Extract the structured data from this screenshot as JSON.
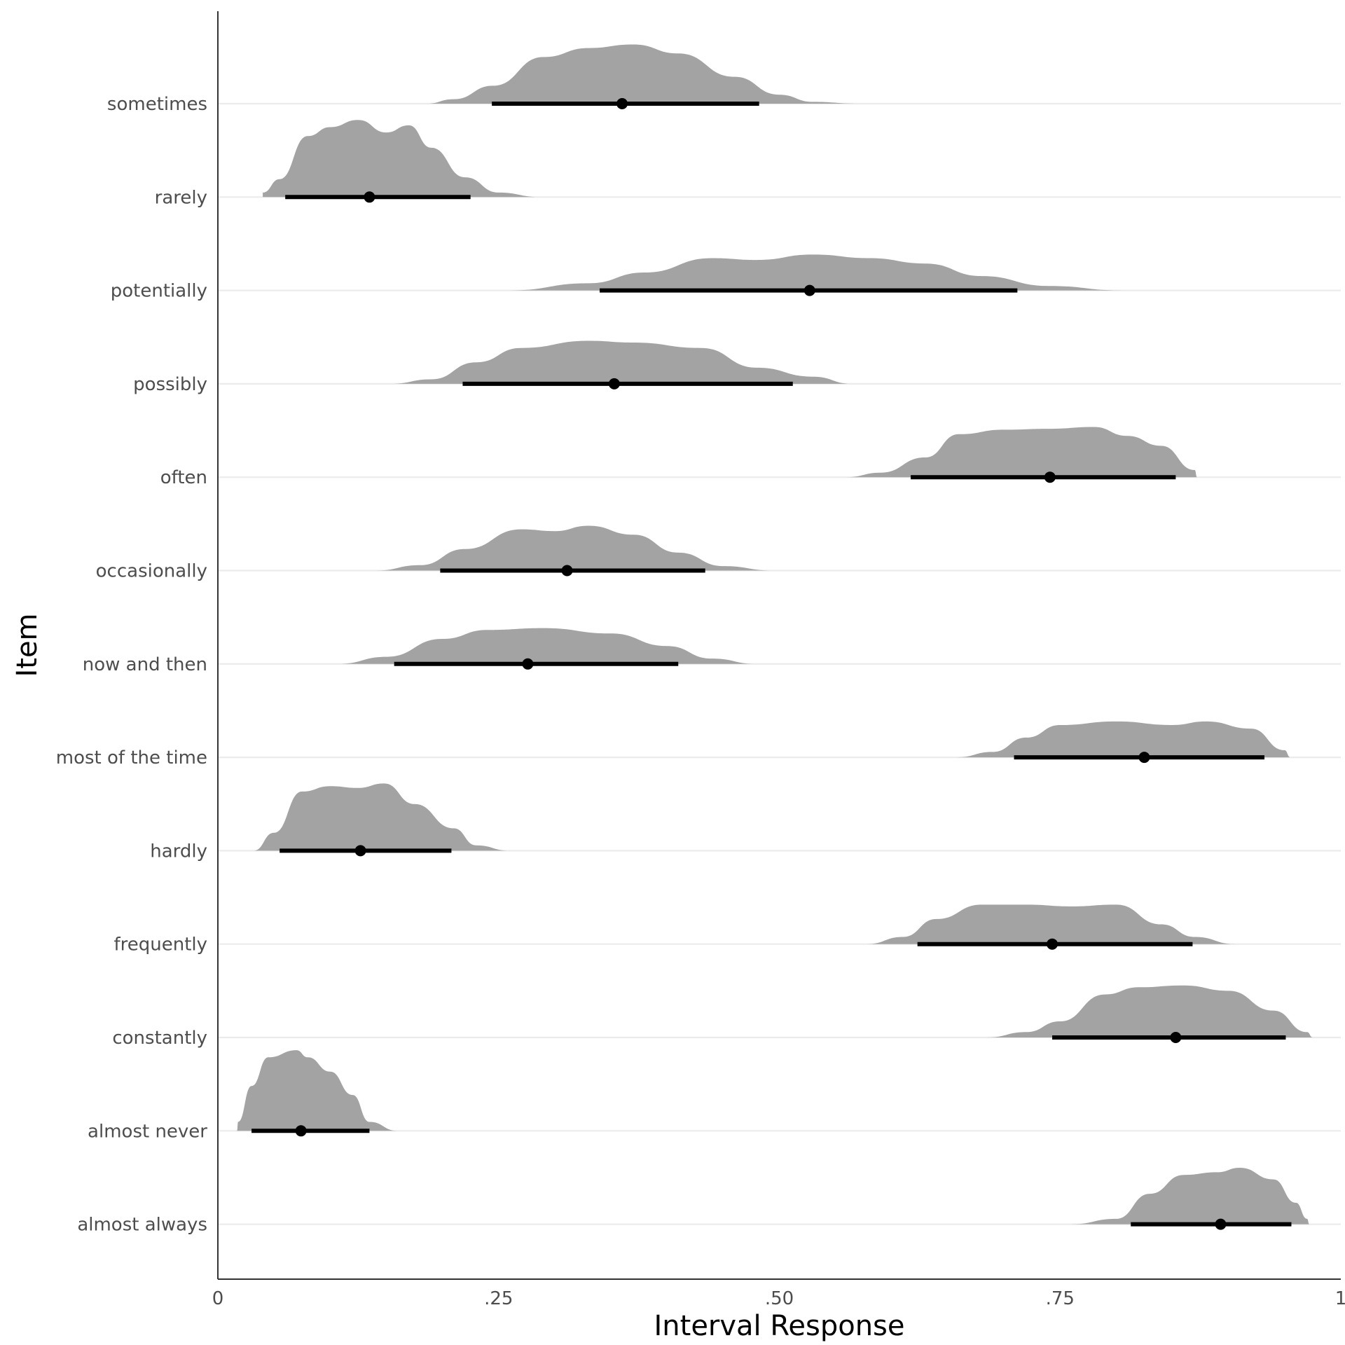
{
  "chart_data": {
    "type": "halfeye",
    "xlabel": "Interval Response",
    "ylabel": "Item",
    "xlim": [
      0,
      1
    ],
    "x_ticks": [
      {
        "value": 0,
        "label": "0"
      },
      {
        "value": 0.25,
        "label": ".25"
      },
      {
        "value": 0.5,
        "label": ".50"
      },
      {
        "value": 0.75,
        "label": ".75"
      },
      {
        "value": 1,
        "label": "1"
      }
    ],
    "grid": {
      "major_y": true,
      "major_x": false
    },
    "colors": {
      "density_fill": "#a3a3a3",
      "interval": "#000000",
      "point": "#000000",
      "gridline": "#ebebeb",
      "axis": "#333333"
    },
    "items": [
      {
        "label": "sometimes",
        "point": 0.36,
        "interval": [
          0.244,
          0.482
        ],
        "density": [
          [
            0.186,
            0.0
          ],
          [
            0.21,
            0.05
          ],
          [
            0.245,
            0.2
          ],
          [
            0.29,
            0.52
          ],
          [
            0.33,
            0.62
          ],
          [
            0.37,
            0.66
          ],
          [
            0.41,
            0.56
          ],
          [
            0.46,
            0.3
          ],
          [
            0.5,
            0.1
          ],
          [
            0.53,
            0.02
          ],
          [
            0.57,
            0.0
          ]
        ]
      },
      {
        "label": "rarely",
        "point": 0.135,
        "interval": [
          0.06,
          0.225
        ],
        "density": [
          [
            0.04,
            0.05
          ],
          [
            0.055,
            0.2
          ],
          [
            0.08,
            0.68
          ],
          [
            0.1,
            0.78
          ],
          [
            0.125,
            0.86
          ],
          [
            0.15,
            0.72
          ],
          [
            0.17,
            0.8
          ],
          [
            0.19,
            0.55
          ],
          [
            0.22,
            0.22
          ],
          [
            0.25,
            0.05
          ],
          [
            0.287,
            0.0
          ]
        ]
      },
      {
        "label": "potentially",
        "point": 0.527,
        "interval": [
          0.34,
          0.712
        ],
        "density": [
          [
            0.26,
            0.0
          ],
          [
            0.33,
            0.08
          ],
          [
            0.38,
            0.2
          ],
          [
            0.44,
            0.36
          ],
          [
            0.48,
            0.34
          ],
          [
            0.53,
            0.4
          ],
          [
            0.58,
            0.36
          ],
          [
            0.63,
            0.3
          ],
          [
            0.68,
            0.16
          ],
          [
            0.74,
            0.05
          ],
          [
            0.805,
            0.0
          ]
        ]
      },
      {
        "label": "possibly",
        "point": 0.353,
        "interval": [
          0.218,
          0.512
        ],
        "density": [
          [
            0.154,
            0.0
          ],
          [
            0.19,
            0.05
          ],
          [
            0.23,
            0.24
          ],
          [
            0.27,
            0.4
          ],
          [
            0.33,
            0.48
          ],
          [
            0.37,
            0.46
          ],
          [
            0.43,
            0.4
          ],
          [
            0.48,
            0.18
          ],
          [
            0.53,
            0.08
          ],
          [
            0.565,
            0.0
          ]
        ]
      },
      {
        "label": "often",
        "point": 0.741,
        "interval": [
          0.617,
          0.853
        ],
        "density": [
          [
            0.56,
            0.0
          ],
          [
            0.59,
            0.05
          ],
          [
            0.63,
            0.22
          ],
          [
            0.66,
            0.48
          ],
          [
            0.7,
            0.53
          ],
          [
            0.74,
            0.54
          ],
          [
            0.78,
            0.56
          ],
          [
            0.81,
            0.46
          ],
          [
            0.84,
            0.35
          ],
          [
            0.87,
            0.08
          ],
          [
            0.872,
            0.0
          ]
        ]
      },
      {
        "label": "occasionally",
        "point": 0.311,
        "interval": [
          0.198,
          0.434
        ],
        "density": [
          [
            0.141,
            0.0
          ],
          [
            0.18,
            0.06
          ],
          [
            0.22,
            0.24
          ],
          [
            0.27,
            0.46
          ],
          [
            0.3,
            0.44
          ],
          [
            0.33,
            0.5
          ],
          [
            0.37,
            0.4
          ],
          [
            0.41,
            0.2
          ],
          [
            0.45,
            0.05
          ],
          [
            0.495,
            0.0
          ]
        ]
      },
      {
        "label": "now and then",
        "point": 0.276,
        "interval": [
          0.157,
          0.41
        ],
        "density": [
          [
            0.107,
            0.0
          ],
          [
            0.15,
            0.08
          ],
          [
            0.2,
            0.28
          ],
          [
            0.24,
            0.38
          ],
          [
            0.29,
            0.4
          ],
          [
            0.35,
            0.34
          ],
          [
            0.4,
            0.2
          ],
          [
            0.44,
            0.06
          ],
          [
            0.48,
            0.0
          ]
        ]
      },
      {
        "label": "most of the time",
        "point": 0.825,
        "interval": [
          0.709,
          0.932
        ],
        "density": [
          [
            0.658,
            0.0
          ],
          [
            0.69,
            0.06
          ],
          [
            0.72,
            0.22
          ],
          [
            0.75,
            0.36
          ],
          [
            0.8,
            0.4
          ],
          [
            0.85,
            0.36
          ],
          [
            0.88,
            0.4
          ],
          [
            0.92,
            0.32
          ],
          [
            0.95,
            0.08
          ],
          [
            0.955,
            0.0
          ]
        ]
      },
      {
        "label": "hardly",
        "point": 0.127,
        "interval": [
          0.055,
          0.208
        ],
        "density": [
          [
            0.032,
            0.0
          ],
          [
            0.05,
            0.2
          ],
          [
            0.075,
            0.66
          ],
          [
            0.1,
            0.72
          ],
          [
            0.125,
            0.7
          ],
          [
            0.148,
            0.75
          ],
          [
            0.175,
            0.52
          ],
          [
            0.21,
            0.25
          ],
          [
            0.23,
            0.06
          ],
          [
            0.26,
            0.0
          ]
        ]
      },
      {
        "label": "frequently",
        "point": 0.743,
        "interval": [
          0.623,
          0.868
        ],
        "density": [
          [
            0.578,
            0.0
          ],
          [
            0.61,
            0.08
          ],
          [
            0.64,
            0.28
          ],
          [
            0.68,
            0.44
          ],
          [
            0.72,
            0.44
          ],
          [
            0.76,
            0.42
          ],
          [
            0.8,
            0.44
          ],
          [
            0.84,
            0.22
          ],
          [
            0.87,
            0.08
          ],
          [
            0.906,
            0.0
          ]
        ]
      },
      {
        "label": "constantly",
        "point": 0.853,
        "interval": [
          0.743,
          0.951
        ],
        "density": [
          [
            0.685,
            0.0
          ],
          [
            0.72,
            0.06
          ],
          [
            0.75,
            0.18
          ],
          [
            0.79,
            0.48
          ],
          [
            0.82,
            0.56
          ],
          [
            0.86,
            0.58
          ],
          [
            0.9,
            0.52
          ],
          [
            0.94,
            0.3
          ],
          [
            0.97,
            0.06
          ],
          [
            0.975,
            0.0
          ]
        ]
      },
      {
        "label": "almost never",
        "point": 0.074,
        "interval": [
          0.03,
          0.135
        ],
        "density": [
          [
            0.017,
            0.0
          ],
          [
            0.018,
            0.1
          ],
          [
            0.03,
            0.5
          ],
          [
            0.045,
            0.82
          ],
          [
            0.07,
            0.9
          ],
          [
            0.08,
            0.82
          ],
          [
            0.1,
            0.66
          ],
          [
            0.12,
            0.4
          ],
          [
            0.135,
            0.1
          ],
          [
            0.16,
            0.0
          ]
        ]
      },
      {
        "label": "almost always",
        "point": 0.893,
        "interval": [
          0.813,
          0.956
        ],
        "density": [
          [
            0.76,
            0.0
          ],
          [
            0.8,
            0.06
          ],
          [
            0.83,
            0.34
          ],
          [
            0.86,
            0.55
          ],
          [
            0.89,
            0.58
          ],
          [
            0.91,
            0.63
          ],
          [
            0.94,
            0.5
          ],
          [
            0.96,
            0.24
          ],
          [
            0.97,
            0.06
          ],
          [
            0.972,
            0.0
          ]
        ]
      }
    ]
  }
}
